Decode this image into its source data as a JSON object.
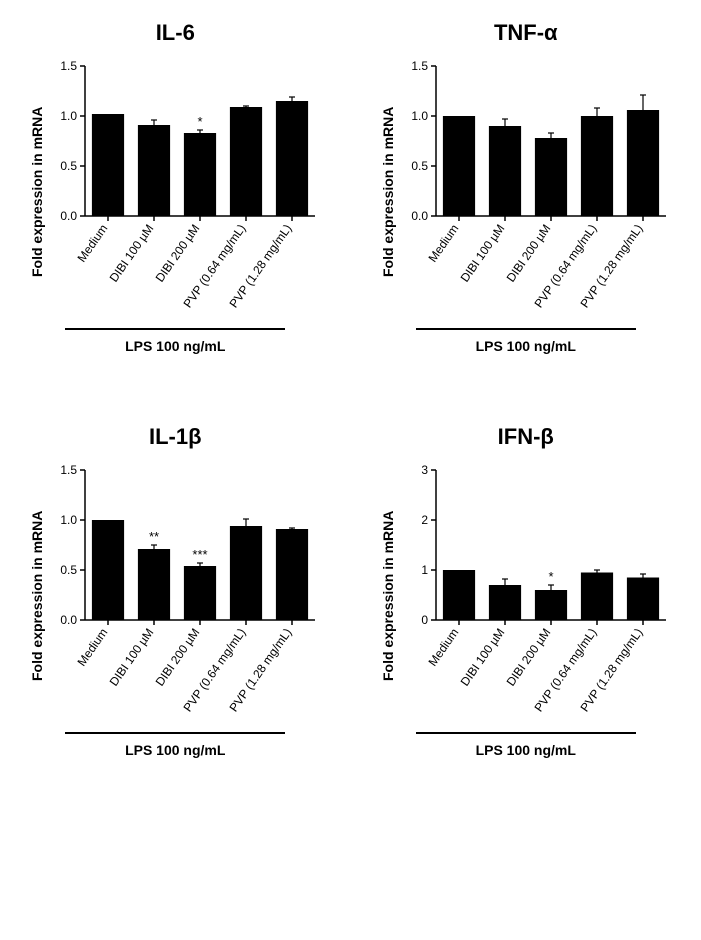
{
  "global": {
    "categories": [
      "Medium",
      "DIBI 100 µM",
      "DIBI 200 µM",
      "PVP (0.64 mg/mL)",
      "PVP (1.28 mg/mL)"
    ],
    "ylabel": "Fold expression in mRNA",
    "footer": "LPS 100 ng/mL",
    "bar_color": "#000000",
    "background_color": "#ffffff",
    "axis_color": "#000000",
    "bar_width": 0.7,
    "label_fontsize": 14,
    "tick_fontsize": 12,
    "title_fontsize": 22,
    "error_cap_width": 6,
    "error_line_width": 1.2
  },
  "panels": [
    {
      "title": "IL-6",
      "ylim": [
        0,
        1.5
      ],
      "ytick_step": 0.5,
      "values": [
        1.02,
        0.91,
        0.83,
        1.09,
        1.15
      ],
      "errors": [
        0.0,
        0.05,
        0.03,
        0.01,
        0.04
      ],
      "sig": [
        "",
        "",
        "*",
        "",
        ""
      ]
    },
    {
      "title": "TNF-α",
      "ylim": [
        0,
        1.5
      ],
      "ytick_step": 0.5,
      "values": [
        1.0,
        0.9,
        0.78,
        1.0,
        1.06
      ],
      "errors": [
        0.0,
        0.07,
        0.05,
        0.08,
        0.15
      ],
      "sig": [
        "",
        "",
        "",
        "",
        ""
      ]
    },
    {
      "title": "IL-1β",
      "ylim": [
        0,
        1.5
      ],
      "ytick_step": 0.5,
      "values": [
        1.0,
        0.71,
        0.54,
        0.94,
        0.91
      ],
      "errors": [
        0.0,
        0.04,
        0.03,
        0.07,
        0.01
      ],
      "sig": [
        "",
        "**",
        "***",
        "",
        ""
      ]
    },
    {
      "title": "IFN-β",
      "ylim": [
        0,
        3
      ],
      "ytick_step": 1,
      "values": [
        1.0,
        0.7,
        0.6,
        0.95,
        0.85
      ],
      "errors": [
        0.0,
        0.12,
        0.1,
        0.05,
        0.07
      ],
      "sig": [
        "",
        "",
        "*",
        "",
        ""
      ]
    }
  ]
}
